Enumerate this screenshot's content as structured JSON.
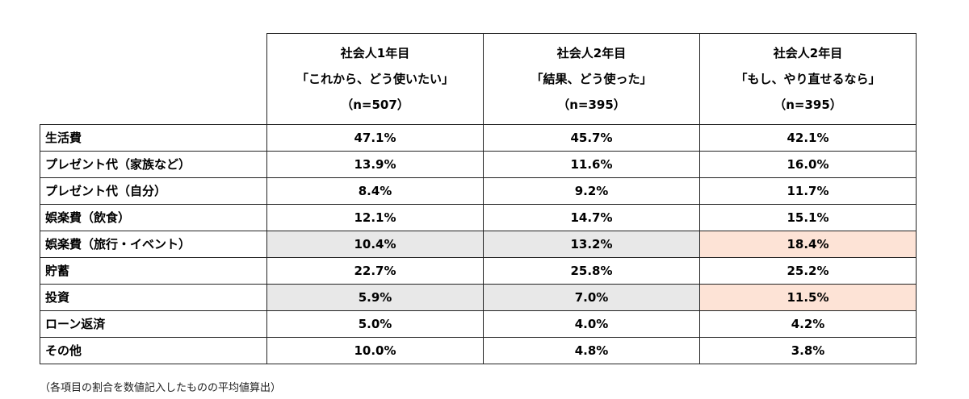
{
  "chart_data": {
    "type": "table",
    "columns": [
      {
        "title": "社会人1年目",
        "subtitle": "「これから、どう使いたい」",
        "n": "（n=507）"
      },
      {
        "title": "社会人2年目",
        "subtitle": "「結果、どう使った」",
        "n": "（n=395）"
      },
      {
        "title": "社会人2年目",
        "subtitle": "「もし、やり直せるなら」",
        "n": "（n=395）"
      }
    ],
    "rows": [
      {
        "label": "生活費",
        "values": [
          "47.1%",
          "45.7%",
          "42.1%"
        ],
        "highlight": [
          "",
          "",
          ""
        ]
      },
      {
        "label": "プレゼント代（家族など）",
        "values": [
          "13.9%",
          "11.6%",
          "16.0%"
        ],
        "highlight": [
          "",
          "",
          ""
        ]
      },
      {
        "label": "プレゼント代（自分）",
        "values": [
          "8.4%",
          "9.2%",
          "11.7%"
        ],
        "highlight": [
          "",
          "",
          ""
        ]
      },
      {
        "label": "娯楽費（飲食）",
        "values": [
          "12.1%",
          "14.7%",
          "15.1%"
        ],
        "highlight": [
          "",
          "",
          ""
        ]
      },
      {
        "label": "娯楽費（旅行・イベント）",
        "values": [
          "10.4%",
          "13.2%",
          "18.4%"
        ],
        "highlight": [
          "gray",
          "gray",
          "pink"
        ]
      },
      {
        "label": "貯蓄",
        "values": [
          "22.7%",
          "25.8%",
          "25.2%"
        ],
        "highlight": [
          "",
          "",
          ""
        ]
      },
      {
        "label": "投資",
        "values": [
          "5.9%",
          "7.0%",
          "11.5%"
        ],
        "highlight": [
          "gray",
          "gray",
          "pink"
        ]
      },
      {
        "label": "ローン返済",
        "values": [
          "5.0%",
          "4.0%",
          "4.2%"
        ],
        "highlight": [
          "",
          "",
          ""
        ]
      },
      {
        "label": "その他",
        "values": [
          "10.0%",
          "4.8%",
          "3.8%"
        ],
        "highlight": [
          "",
          "",
          ""
        ]
      }
    ],
    "highlight_colors": {
      "gray": "#e8e8e8",
      "pink": "#fde3d6"
    }
  },
  "footnote": "（各項目の割合を数値記入したものの平均値算出）"
}
